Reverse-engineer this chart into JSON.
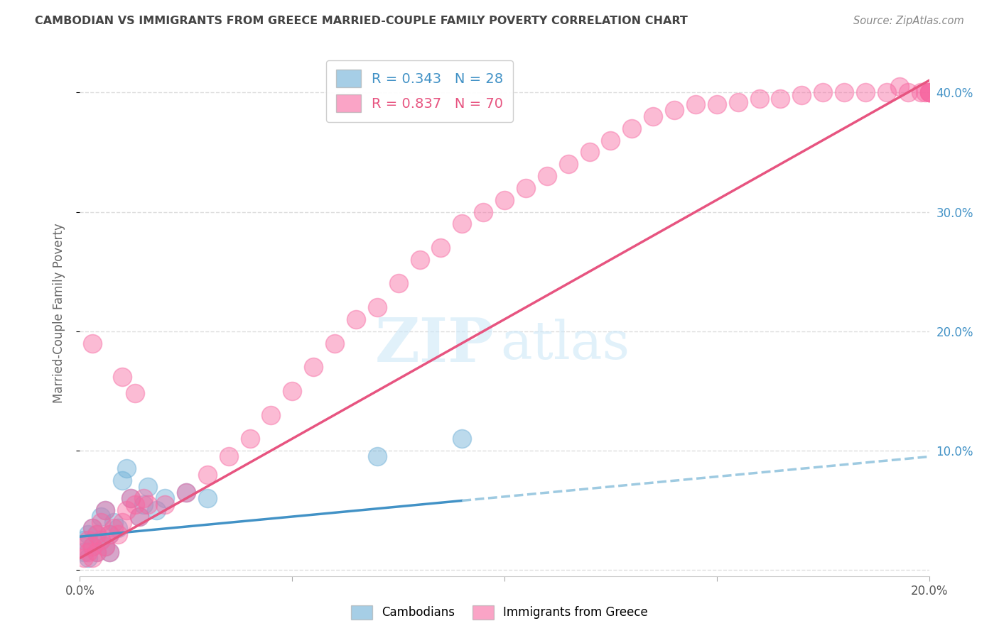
{
  "title": "CAMBODIAN VS IMMIGRANTS FROM GREECE MARRIED-COUPLE FAMILY POVERTY CORRELATION CHART",
  "source": "Source: ZipAtlas.com",
  "ylabel": "Married-Couple Family Poverty",
  "xlim": [
    0.0,
    0.2
  ],
  "ylim": [
    -0.005,
    0.435
  ],
  "xtick_pos": [
    0.0,
    0.05,
    0.1,
    0.15,
    0.2
  ],
  "xtick_labels": [
    "0.0%",
    "",
    "",
    "",
    "20.0%"
  ],
  "ytick_pos": [
    0.0,
    0.1,
    0.2,
    0.3,
    0.4
  ],
  "ytick_labels_right": [
    "",
    "10.0%",
    "20.0%",
    "30.0%",
    "40.0%"
  ],
  "cambodian_color": "#6baed6",
  "greece_color": "#f768a1",
  "legend_label1": "R = 0.343   N = 28",
  "legend_label2": "R = 0.837   N = 70",
  "legend_cambodians": "Cambodians",
  "legend_greece": "Immigrants from Greece",
  "bg_color": "#ffffff",
  "grid_color": "#dddddd",
  "title_color": "#444444",
  "source_color": "#888888",
  "ylabel_color": "#666666",
  "right_tick_color": "#4292c6",
  "camb_line_color": "#4292c6",
  "camb_dash_color": "#9ecae1",
  "greece_line_color": "#e75480",
  "camb_legend_text_color": "#4292c6",
  "greece_legend_text_color": "#e75480",
  "camb_x": [
    0.001,
    0.001,
    0.002,
    0.002,
    0.003,
    0.003,
    0.004,
    0.004,
    0.005,
    0.005,
    0.006,
    0.006,
    0.007,
    0.007,
    0.008,
    0.009,
    0.01,
    0.011,
    0.012,
    0.014,
    0.015,
    0.016,
    0.018,
    0.02,
    0.025,
    0.03,
    0.07,
    0.09
  ],
  "camb_y": [
    0.025,
    0.015,
    0.03,
    0.01,
    0.035,
    0.02,
    0.03,
    0.015,
    0.045,
    0.025,
    0.05,
    0.02,
    0.03,
    0.015,
    0.04,
    0.035,
    0.075,
    0.085,
    0.06,
    0.045,
    0.055,
    0.07,
    0.05,
    0.06,
    0.065,
    0.06,
    0.095,
    0.11
  ],
  "greece_x": [
    0.001,
    0.001,
    0.002,
    0.002,
    0.003,
    0.003,
    0.003,
    0.004,
    0.004,
    0.005,
    0.005,
    0.006,
    0.006,
    0.007,
    0.007,
    0.008,
    0.009,
    0.01,
    0.011,
    0.012,
    0.013,
    0.014,
    0.015,
    0.016,
    0.003,
    0.01,
    0.013,
    0.193,
    0.02,
    0.025,
    0.03,
    0.035,
    0.04,
    0.045,
    0.05,
    0.055,
    0.06,
    0.065,
    0.07,
    0.075,
    0.08,
    0.085,
    0.09,
    0.095,
    0.1,
    0.105,
    0.11,
    0.115,
    0.12,
    0.125,
    0.13,
    0.135,
    0.14,
    0.145,
    0.15,
    0.155,
    0.16,
    0.165,
    0.17,
    0.175,
    0.18,
    0.185,
    0.19,
    0.195,
    0.198,
    0.199,
    0.2,
    0.2,
    0.2,
    0.2
  ],
  "greece_y": [
    0.02,
    0.01,
    0.025,
    0.015,
    0.035,
    0.02,
    0.01,
    0.03,
    0.015,
    0.04,
    0.025,
    0.05,
    0.02,
    0.03,
    0.015,
    0.035,
    0.03,
    0.04,
    0.05,
    0.06,
    0.055,
    0.045,
    0.06,
    0.055,
    0.19,
    0.162,
    0.148,
    0.405,
    0.055,
    0.065,
    0.08,
    0.095,
    0.11,
    0.13,
    0.15,
    0.17,
    0.19,
    0.21,
    0.22,
    0.24,
    0.26,
    0.27,
    0.29,
    0.3,
    0.31,
    0.32,
    0.33,
    0.34,
    0.35,
    0.36,
    0.37,
    0.38,
    0.385,
    0.39,
    0.39,
    0.392,
    0.395,
    0.395,
    0.398,
    0.4,
    0.4,
    0.4,
    0.4,
    0.4,
    0.4,
    0.4,
    0.4,
    0.4,
    0.4,
    0.4
  ]
}
